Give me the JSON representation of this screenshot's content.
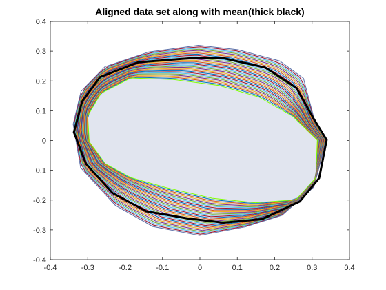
{
  "chart_data": {
    "type": "line",
    "title": "Aligned data set along with mean(thick black)",
    "xlabel": "",
    "ylabel": "",
    "xlim": [
      -0.4,
      0.4
    ],
    "ylim": [
      -0.4,
      0.4
    ],
    "xticks": [
      "-0.4",
      "-0.3",
      "-0.2",
      "-0.1",
      "0",
      "0.1",
      "0.2",
      "0.3",
      "0.4"
    ],
    "yticks": [
      "-0.4",
      "-0.3",
      "-0.2",
      "-0.1",
      "0",
      "0.1",
      "0.2",
      "0.3",
      "0.4"
    ],
    "grid": false,
    "legend": "none",
    "mean_contour": {
      "color": "#000000",
      "points": [
        [
          0.339,
          0.002
        ],
        [
          0.303,
          0.076
        ],
        [
          0.259,
          0.176
        ],
        [
          0.175,
          0.245
        ],
        [
          0.065,
          0.276
        ],
        [
          -0.029,
          0.276
        ],
        [
          -0.164,
          0.263
        ],
        [
          -0.267,
          0.213
        ],
        [
          -0.315,
          0.131
        ],
        [
          -0.337,
          0.028
        ],
        [
          -0.305,
          -0.078
        ],
        [
          -0.233,
          -0.177
        ],
        [
          -0.143,
          -0.238
        ],
        [
          -0.031,
          -0.262
        ],
        [
          0.063,
          -0.276
        ],
        [
          0.166,
          -0.264
        ],
        [
          0.267,
          -0.205
        ],
        [
          0.319,
          -0.126
        ]
      ]
    },
    "outer_contour": {
      "color": "#5b6fa8",
      "points": [
        [
          0.338,
          0.002
        ],
        [
          0.306,
          0.071
        ],
        [
          0.277,
          0.209
        ],
        [
          0.214,
          0.267
        ],
        [
          0.102,
          0.305
        ],
        [
          -0.004,
          0.32
        ],
        [
          -0.138,
          0.297
        ],
        [
          -0.254,
          0.248
        ],
        [
          -0.318,
          0.165
        ],
        [
          -0.339,
          0.055
        ],
        [
          -0.319,
          -0.091
        ],
        [
          -0.226,
          -0.218
        ],
        [
          -0.126,
          -0.289
        ],
        [
          -0.001,
          -0.319
        ],
        [
          0.122,
          -0.29
        ],
        [
          0.22,
          -0.251
        ],
        [
          0.305,
          -0.156
        ]
      ]
    },
    "inner_contour": {
      "color": "#7fff00",
      "points": [
        [
          0.314,
          0.001
        ],
        [
          0.248,
          0.082
        ],
        [
          0.158,
          0.146
        ],
        [
          0.051,
          0.185
        ],
        [
          -0.072,
          0.205
        ],
        [
          -0.185,
          0.21
        ],
        [
          -0.265,
          0.158
        ],
        [
          -0.3,
          0.083
        ],
        [
          -0.296,
          -0.004
        ],
        [
          -0.253,
          -0.078
        ],
        [
          -0.184,
          -0.125
        ],
        [
          -0.091,
          -0.158
        ],
        [
          0.033,
          -0.194
        ],
        [
          0.148,
          -0.209
        ],
        [
          0.257,
          -0.199
        ],
        [
          0.31,
          -0.125
        ]
      ]
    },
    "series": [
      {
        "color": "#0072bd"
      },
      {
        "color": "#d95319"
      },
      {
        "color": "#edb120"
      },
      {
        "color": "#7e2f8e"
      },
      {
        "color": "#77ac30"
      },
      {
        "color": "#4dbeee"
      },
      {
        "color": "#a2142f"
      },
      {
        "color": "#0072bd"
      },
      {
        "color": "#d95319"
      },
      {
        "color": "#edb120"
      },
      {
        "color": "#7e2f8e"
      },
      {
        "color": "#77ac30"
      },
      {
        "color": "#4dbeee"
      },
      {
        "color": "#a2142f"
      },
      {
        "color": "#0072bd"
      },
      {
        "color": "#d95319"
      },
      {
        "color": "#edb120"
      },
      {
        "color": "#7e2f8e"
      },
      {
        "color": "#77ac30"
      },
      {
        "color": "#4dbeee"
      },
      {
        "color": "#a2142f"
      },
      {
        "color": "#0072bd"
      },
      {
        "color": "#d95319"
      },
      {
        "color": "#edb120"
      },
      {
        "color": "#7e2f8e"
      },
      {
        "color": "#77ac30"
      },
      {
        "color": "#4dbeee"
      },
      {
        "color": "#a2142f"
      }
    ]
  }
}
